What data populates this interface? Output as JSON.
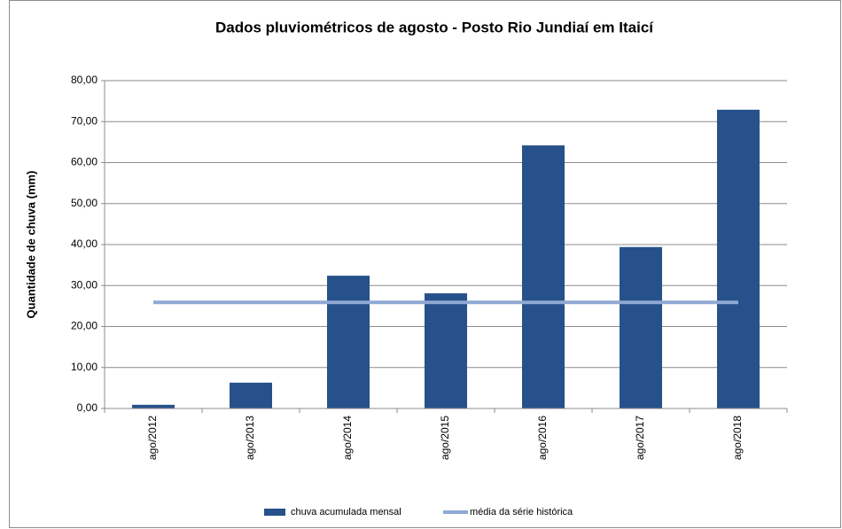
{
  "chart_data": {
    "type": "bar",
    "title": "Dados pluviométricos de agosto - Posto Rio Jundiaí em Itaicí",
    "y_label": "Quantidade de chuva (mm)",
    "categories": [
      "ago/2012",
      "ago/2013",
      "ago/2014",
      "ago/2015",
      "ago/2016",
      "ago/2017",
      "ago/2018"
    ],
    "series": [
      {
        "name": "chuva acumulada mensal",
        "type": "bar",
        "color": "#26518a",
        "values": [
          0.9,
          6.3,
          32.4,
          28.1,
          64.2,
          39.4,
          72.9
        ]
      },
      {
        "name": "média da série histórica",
        "type": "line",
        "color": "#8fa9d4",
        "values": [
          25.9,
          25.9,
          25.9,
          25.9,
          25.9,
          25.9,
          25.9
        ]
      }
    ],
    "ylim": [
      0,
      80
    ],
    "yticks": [
      {
        "value": 0,
        "label": "0,00"
      },
      {
        "value": 10,
        "label": "10,00"
      },
      {
        "value": 20,
        "label": "20,00"
      },
      {
        "value": 30,
        "label": "30,00"
      },
      {
        "value": 40,
        "label": "40,00"
      },
      {
        "value": 50,
        "label": "50,00"
      },
      {
        "value": 60,
        "label": "60,00"
      },
      {
        "value": 70,
        "label": "70,00"
      },
      {
        "value": 80,
        "label": "80,00"
      }
    ],
    "grid": true,
    "legend": "bottom"
  }
}
